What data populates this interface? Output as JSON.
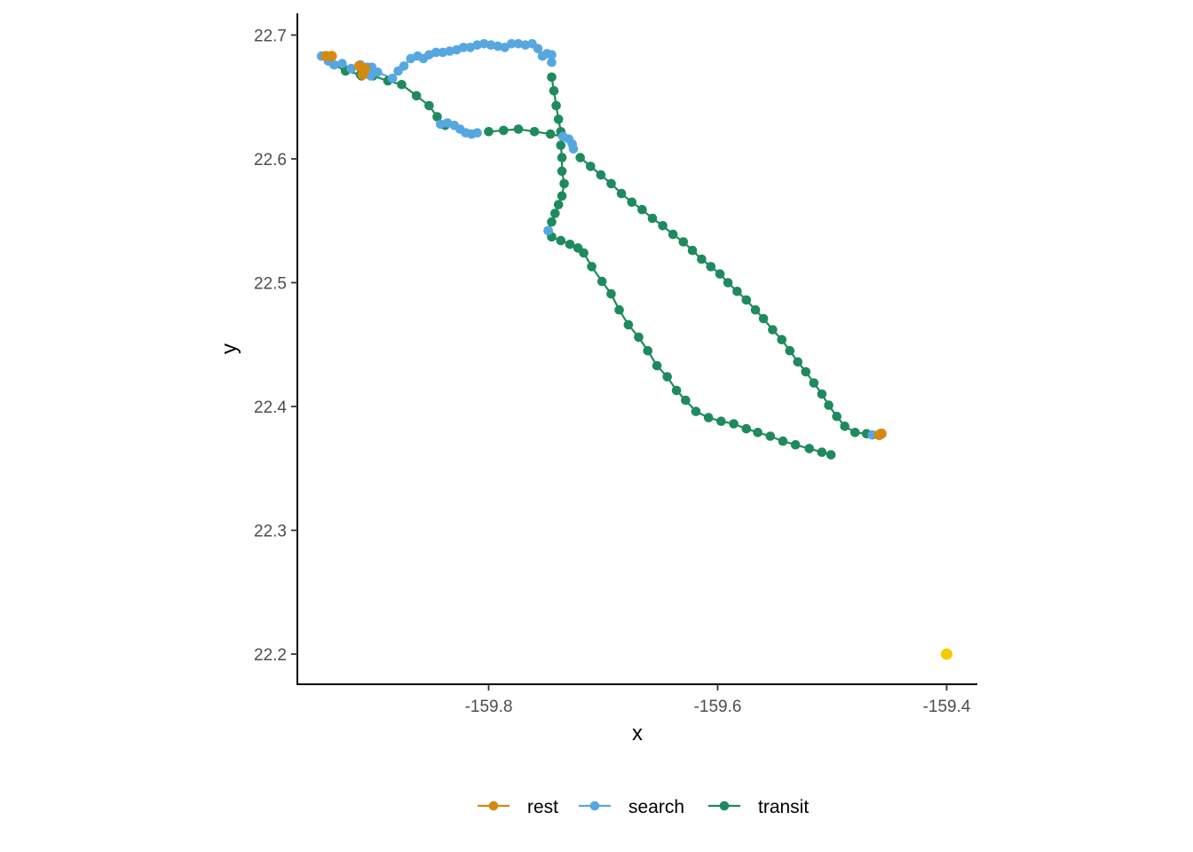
{
  "chart_data": {
    "type": "scatter",
    "title": "",
    "xlabel": "x",
    "ylabel": "y",
    "xlim": [
      -159.958,
      -159.375
    ],
    "ylim": [
      22.176,
      22.717
    ],
    "x_ticks": [
      -159.8,
      -159.6,
      -159.4
    ],
    "x_tick_labels": [
      "-159.8",
      "-159.6",
      "-159.4"
    ],
    "y_ticks": [
      22.2,
      22.3,
      22.4,
      22.5,
      22.6,
      22.7
    ],
    "y_tick_labels": [
      "22.2",
      "22.3",
      "22.4",
      "22.5",
      "22.6",
      "22.7"
    ],
    "grid": false,
    "legend_position": "bottom",
    "colors": {
      "rest": "#D68910",
      "search": "#56A7E0",
      "transit": "#1E8A5E",
      "extra_point": "#F5CC00"
    },
    "series": [
      {
        "name": "rest",
        "x": [
          -159.942,
          -159.937,
          -159.913,
          -159.908,
          -159.91,
          -159.457,
          -159.459
        ],
        "y": [
          22.683,
          22.683,
          22.675,
          22.673,
          22.668,
          22.378,
          22.377
        ]
      },
      {
        "name": "search",
        "points": [
          [
            -159.946,
            22.683
          ],
          [
            -159.94,
            22.679
          ],
          [
            -159.935,
            22.676
          ],
          [
            -159.928,
            22.677
          ],
          [
            -159.92,
            22.673
          ],
          [
            -159.912,
            22.676
          ],
          [
            -159.906,
            22.674
          ],
          [
            -159.902,
            22.674
          ],
          [
            -159.903,
            22.667
          ],
          [
            -159.897,
            22.67
          ],
          [
            -159.884,
            22.665
          ],
          [
            -159.879,
            22.671
          ],
          [
            -159.874,
            22.675
          ],
          [
            -159.868,
            22.681
          ],
          [
            -159.862,
            22.683
          ],
          [
            -159.857,
            22.681
          ],
          [
            -159.852,
            22.684
          ],
          [
            -159.846,
            22.686
          ],
          [
            -159.84,
            22.686
          ],
          [
            -159.834,
            22.687
          ],
          [
            -159.828,
            22.688
          ],
          [
            -159.822,
            22.69
          ],
          [
            -159.816,
            22.69
          ],
          [
            -159.81,
            22.692
          ],
          [
            -159.804,
            22.693
          ],
          [
            -159.798,
            22.692
          ],
          [
            -159.792,
            22.691
          ],
          [
            -159.786,
            22.69
          ],
          [
            -159.78,
            22.693
          ],
          [
            -159.774,
            22.693
          ],
          [
            -159.768,
            22.692
          ],
          [
            -159.762,
            22.693
          ],
          [
            -159.757,
            22.689
          ],
          [
            -159.753,
            22.683
          ],
          [
            -159.749,
            22.685
          ],
          [
            -159.745,
            22.684
          ],
          [
            -159.745,
            22.678
          ],
          [
            -159.842,
            22.628
          ],
          [
            -159.836,
            22.629
          ],
          [
            -159.83,
            22.627
          ],
          [
            -159.825,
            22.624
          ],
          [
            -159.82,
            22.621
          ],
          [
            -159.815,
            22.62
          ],
          [
            -159.81,
            22.621
          ],
          [
            -159.735,
            22.618
          ],
          [
            -159.73,
            22.616
          ],
          [
            -159.727,
            22.612
          ],
          [
            -159.726,
            22.608
          ],
          [
            -159.748,
            22.542
          ],
          [
            -159.465,
            22.377
          ]
        ]
      },
      {
        "name": "transit",
        "paths": [
          [
            [
              -159.935,
              22.676
            ],
            [
              -159.925,
              22.671
            ],
            [
              -159.912,
              22.668
            ],
            [
              -159.901,
              22.667
            ],
            [
              -159.888,
              22.663
            ],
            [
              -159.876,
              22.66
            ],
            [
              -159.863,
              22.651
            ],
            [
              -159.852,
              22.643
            ],
            [
              -159.845,
              22.634
            ],
            [
              -159.838,
              22.627
            ]
          ],
          [
            [
              -159.91,
              22.673
            ],
            [
              -159.911,
              22.667
            ]
          ],
          [
            [
              -159.8,
              22.622
            ],
            [
              -159.787,
              22.623
            ],
            [
              -159.774,
              22.624
            ],
            [
              -159.76,
              22.622
            ],
            [
              -159.746,
              22.62
            ],
            [
              -159.735,
              22.618
            ]
          ],
          [
            [
              -159.745,
              22.666
            ],
            [
              -159.743,
              22.655
            ],
            [
              -159.741,
              22.643
            ],
            [
              -159.739,
              22.632
            ],
            [
              -159.737,
              22.622
            ],
            [
              -159.737,
              22.611
            ],
            [
              -159.736,
              22.601
            ],
            [
              -159.736,
              22.59
            ],
            [
              -159.734,
              22.58
            ],
            [
              -159.736,
              22.57
            ],
            [
              -159.739,
              22.563
            ],
            [
              -159.742,
              22.556
            ],
            [
              -159.745,
              22.549
            ],
            [
              -159.748,
              22.542
            ]
          ],
          [
            [
              -159.745,
              22.537
            ],
            [
              -159.737,
              22.534
            ],
            [
              -159.729,
              22.531
            ],
            [
              -159.722,
              22.528
            ],
            [
              -159.717,
              22.524
            ],
            [
              -159.71,
              22.513
            ],
            [
              -159.701,
              22.501
            ],
            [
              -159.693,
              22.491
            ],
            [
              -159.686,
              22.478
            ],
            [
              -159.678,
              22.466
            ],
            [
              -159.669,
              22.456
            ],
            [
              -159.661,
              22.445
            ],
            [
              -159.653,
              22.433
            ],
            [
              -159.644,
              22.424
            ],
            [
              -159.636,
              22.413
            ],
            [
              -159.628,
              22.405
            ],
            [
              -159.619,
              22.396
            ],
            [
              -159.608,
              22.391
            ],
            [
              -159.597,
              22.388
            ],
            [
              -159.586,
              22.386
            ],
            [
              -159.575,
              22.382
            ],
            [
              -159.565,
              22.379
            ],
            [
              -159.554,
              22.376
            ],
            [
              -159.543,
              22.372
            ],
            [
              -159.532,
              22.369
            ],
            [
              -159.52,
              22.366
            ],
            [
              -159.509,
              22.363
            ],
            [
              -159.501,
              22.361
            ]
          ],
          [
            [
              -159.72,
              22.601
            ],
            [
              -159.711,
              22.594
            ],
            [
              -159.702,
              22.587
            ],
            [
              -159.693,
              22.58
            ],
            [
              -159.684,
              22.572
            ],
            [
              -159.675,
              22.565
            ],
            [
              -159.666,
              22.559
            ],
            [
              -159.657,
              22.552
            ],
            [
              -159.648,
              22.546
            ],
            [
              -159.639,
              22.539
            ],
            [
              -159.63,
              22.533
            ],
            [
              -159.622,
              22.526
            ],
            [
              -159.614,
              22.519
            ],
            [
              -159.606,
              22.513
            ],
            [
              -159.598,
              22.507
            ],
            [
              -159.591,
              22.5
            ],
            [
              -159.583,
              22.493
            ],
            [
              -159.575,
              22.486
            ],
            [
              -159.567,
              22.478
            ],
            [
              -159.56,
              22.471
            ],
            [
              -159.552,
              22.462
            ],
            [
              -159.544,
              22.454
            ],
            [
              -159.537,
              22.445
            ],
            [
              -159.53,
              22.436
            ],
            [
              -159.523,
              22.428
            ],
            [
              -159.516,
              22.419
            ],
            [
              -159.509,
              22.41
            ],
            [
              -159.503,
              22.401
            ],
            [
              -159.496,
              22.392
            ],
            [
              -159.489,
              22.384
            ],
            [
              -159.48,
              22.379
            ],
            [
              -159.47,
              22.378
            ]
          ]
        ]
      }
    ],
    "extra_point": {
      "x": -159.4,
      "y": 22.2
    },
    "legend": [
      "rest",
      "search",
      "transit"
    ]
  }
}
